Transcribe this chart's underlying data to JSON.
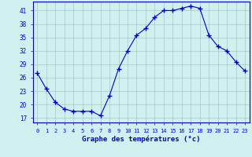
{
  "hours": [
    0,
    1,
    2,
    3,
    4,
    5,
    6,
    7,
    8,
    9,
    10,
    11,
    12,
    13,
    14,
    15,
    16,
    17,
    18,
    19,
    20,
    21,
    22,
    23
  ],
  "temps": [
    27,
    23.5,
    20.5,
    19,
    18.5,
    18.5,
    18.5,
    17.5,
    22,
    28,
    32,
    35.5,
    37,
    39.5,
    41,
    41,
    41.5,
    42,
    41.5,
    35.5,
    33,
    32,
    29.5,
    27.5
  ],
  "line_color": "#0000cc",
  "marker": "+",
  "marker_size": 4,
  "bg_color": "#d0f0f0",
  "grid_color": "#a0c8c8",
  "xlabel": "Graphe des températures (°c)",
  "xlabel_color": "#0000cc",
  "tick_color": "#0000cc",
  "ylim": [
    16,
    43
  ],
  "yticks": [
    17,
    20,
    23,
    26,
    29,
    32,
    35,
    38,
    41
  ],
  "xlim": [
    -0.5,
    23.5
  ],
  "xticks": [
    0,
    1,
    2,
    3,
    4,
    5,
    6,
    7,
    8,
    9,
    10,
    11,
    12,
    13,
    14,
    15,
    16,
    17,
    18,
    19,
    20,
    21,
    22,
    23
  ],
  "xtick_labels": [
    "0",
    "1",
    "2",
    "3",
    "4",
    "5",
    "6",
    "7",
    "8",
    "9",
    "10",
    "11",
    "12",
    "13",
    "14",
    "15",
    "16",
    "17",
    "18",
    "19",
    "20",
    "21",
    "22",
    "23"
  ],
  "spine_color": "#0000cc",
  "fig_width": 3.2,
  "fig_height": 2.0,
  "dpi": 100
}
